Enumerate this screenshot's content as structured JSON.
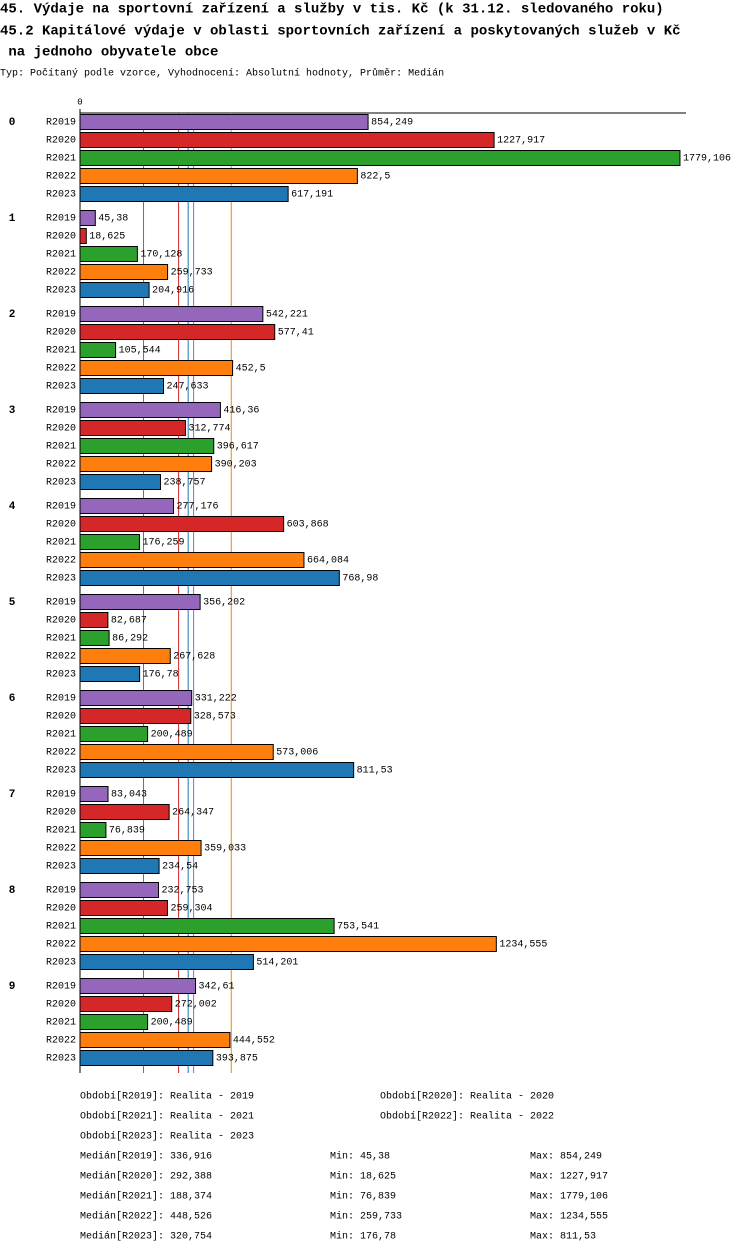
{
  "chart_data": {
    "type": "bar",
    "orientation": "horizontal",
    "title": "45. Výdaje na sportovní zařízení a služby v tis. Kč (k 31.12. sledovaného roku)",
    "subtitle": "45.2 Kapitálové výdaje v oblasti sportovních zařízení a poskytovaných služeb v Kč",
    "subtitle2": " na jednoho obyvatele obce",
    "note": "Typ: Počítaný podle vzorce, Vyhodnocení: Absolutní hodnoty, Průměr: Medián",
    "categories": [
      "0",
      "1",
      "2",
      "3",
      "4",
      "5",
      "6",
      "7",
      "8",
      "9"
    ],
    "xlim": [
      0,
      1797
    ],
    "xticks": [
      0
    ],
    "grid": false,
    "series": [
      {
        "name": "R2019",
        "color": "#9467bd",
        "legend": "Období[R2019]: Realita - 2019",
        "values": [
          854.249,
          45.38,
          542.221,
          416.36,
          277.176,
          356.202,
          331.222,
          83.043,
          232.753,
          342.61
        ],
        "value_labels": [
          "854,249",
          "45,38",
          "542,221",
          "416,36",
          "277,176",
          "356,202",
          "331,222",
          "83,043",
          "232,753",
          "342,61"
        ],
        "median": 336.916,
        "median_label": "Medián[R2019]: 336,916",
        "min_label": "Min: 45,38",
        "max_label": "Max: 854,249"
      },
      {
        "name": "R2020",
        "color": "#d62728",
        "legend": "Období[R2020]: Realita - 2020",
        "values": [
          1227.917,
          18.625,
          577.41,
          312.774,
          603.868,
          82.687,
          328.573,
          264.347,
          259.304,
          272.002
        ],
        "value_labels": [
          "1227,917",
          "18,625",
          "577,41",
          "312,774",
          "603,868",
          "82,687",
          "328,573",
          "264,347",
          "259,304",
          "272,002"
        ],
        "median": 292.388,
        "median_label": "Medián[R2020]: 292,388",
        "min_label": "Min: 18,625",
        "max_label": "Max: 1227,917"
      },
      {
        "name": "R2021",
        "color": "#2ca02c",
        "legend": "Období[R2021]: Realita - 2021",
        "values": [
          1779.106,
          170.128,
          105.544,
          396.617,
          176.259,
          86.292,
          200.489,
          76.839,
          753.541,
          200.489
        ],
        "value_labels": [
          "1779,106",
          "170,128",
          "105,544",
          "396,617",
          "176,259",
          "86,292",
          "200,489",
          "76,839",
          "753,541",
          "200,489"
        ],
        "median": 188.374,
        "median_label": "Medián[R2021]: 188,374",
        "min_label": "Min: 76,839",
        "max_label": "Max: 1779,106"
      },
      {
        "name": "R2022",
        "color": "#ff7f0e",
        "legend": "Období[R2022]: Realita - 2022",
        "values": [
          822.5,
          259.733,
          452.5,
          390.203,
          664.084,
          267.628,
          573.006,
          359.033,
          1234.555,
          444.552
        ],
        "value_labels": [
          "822,5",
          "259,733",
          "452,5",
          "390,203",
          "664,084",
          "267,628",
          "573,006",
          "359,033",
          "1234,555",
          "444,552"
        ],
        "median": 448.526,
        "median_label": "Medián[R2022]: 448,526",
        "min_label": "Min: 259,733",
        "max_label": "Max: 1234,555"
      },
      {
        "name": "R2023",
        "color": "#1f77b4",
        "legend": "Období[R2023]: Realita - 2023",
        "values": [
          617.191,
          204.916,
          247.633,
          238.757,
          768.98,
          176.78,
          811.53,
          234.54,
          514.201,
          393.875
        ],
        "value_labels": [
          "617,191",
          "204,916",
          "247,633",
          "238,757",
          "768,98",
          "176,78",
          "811,53",
          "234,54",
          "514,201",
          "393,875"
        ],
        "median": 320.754,
        "median_label": "Medián[R2023]: 320,754",
        "min_label": "Min: 176,78",
        "max_label": "Max: 811,53"
      }
    ]
  }
}
